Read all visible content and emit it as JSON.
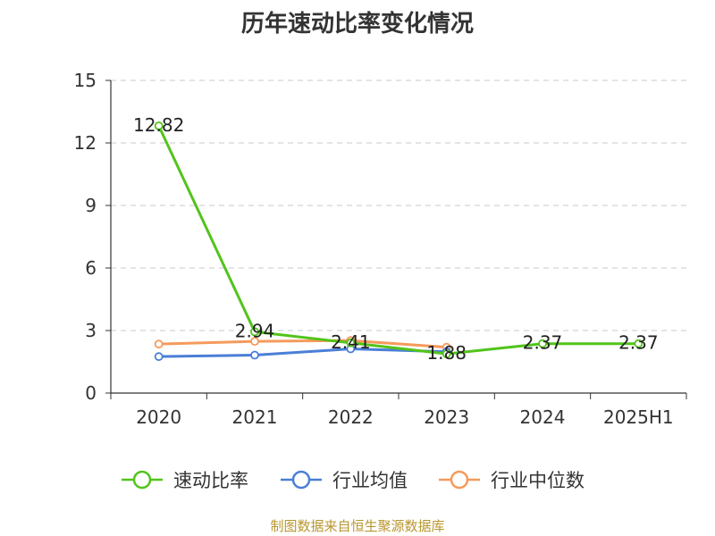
{
  "source": "制图数据来自恒生聚源数据库",
  "chart_data": {
    "type": "line",
    "title": "历年速动比率变化情况",
    "categories": [
      "2020",
      "2021",
      "2022",
      "2023",
      "2024",
      "2025H1"
    ],
    "ylim": [
      0,
      15
    ],
    "yticks": [
      0,
      3,
      6,
      9,
      12,
      15
    ],
    "grid": true,
    "legend_position": "bottom",
    "series": [
      {
        "name": "速动比率",
        "color": "#52c41a",
        "values": [
          12.82,
          2.94,
          2.41,
          1.88,
          2.37,
          2.37
        ],
        "labels": [
          "12.82",
          "2.94",
          "2.41",
          "1.88",
          "2.37",
          "2.37"
        ]
      },
      {
        "name": "行业均值",
        "color": "#4a7fd6",
        "values": [
          1.75,
          1.82,
          2.12,
          1.98,
          null,
          null
        ]
      },
      {
        "name": "行业中位数",
        "color": "#f59a5c",
        "values": [
          2.35,
          2.48,
          2.52,
          2.2,
          null,
          null
        ]
      }
    ]
  }
}
